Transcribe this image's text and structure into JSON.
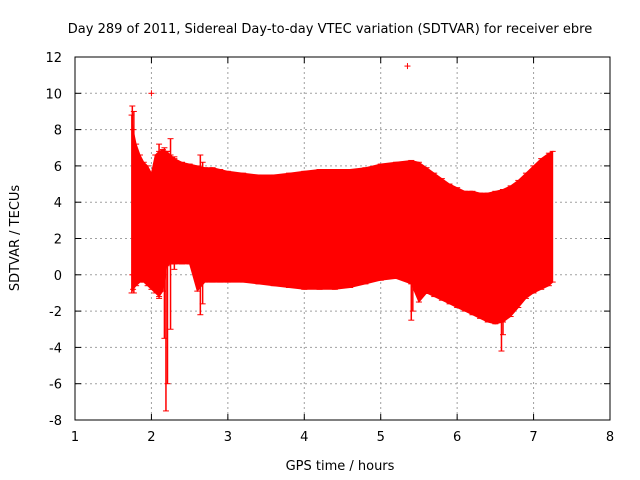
{
  "chart_data": {
    "type": "errorbar",
    "title": "Day 289 of 2011, Sidereal Day-to-day VTEC variation (SDTVAR) for receiver ebre",
    "xlabel": "GPS time / hours",
    "ylabel": "SDTVAR / TECUs",
    "xlim": [
      1,
      8
    ],
    "ylim": [
      -8,
      12
    ],
    "x_ticks": [
      1,
      2,
      3,
      4,
      5,
      6,
      7,
      8
    ],
    "y_ticks": [
      -8,
      -6,
      -4,
      -2,
      0,
      2,
      4,
      6,
      8,
      10,
      12
    ],
    "grid": true,
    "series_color": "#ff0000",
    "band": {
      "name": "SDTVAR error range",
      "x": [
        1.74,
        1.76,
        1.8,
        1.85,
        1.9,
        1.95,
        2.0,
        2.05,
        2.1,
        2.15,
        2.2,
        2.25,
        2.3,
        2.4,
        2.5,
        2.6,
        2.7,
        2.8,
        2.9,
        3.0,
        3.2,
        3.4,
        3.6,
        3.8,
        4.0,
        4.2,
        4.4,
        4.6,
        4.8,
        5.0,
        5.2,
        5.4,
        5.5,
        5.6,
        5.7,
        5.8,
        5.9,
        6.0,
        6.1,
        6.2,
        6.3,
        6.4,
        6.5,
        6.6,
        6.7,
        6.8,
        6.9,
        7.0,
        7.1,
        7.2,
        7.25
      ],
      "upper": [
        8.8,
        8.0,
        7.2,
        6.6,
        6.2,
        6.0,
        5.6,
        6.6,
        6.8,
        6.9,
        6.8,
        6.6,
        6.4,
        6.2,
        6.1,
        6.0,
        5.9,
        5.9,
        5.8,
        5.7,
        5.6,
        5.5,
        5.5,
        5.6,
        5.7,
        5.8,
        5.8,
        5.8,
        5.9,
        6.1,
        6.2,
        6.3,
        6.2,
        5.9,
        5.6,
        5.3,
        5.0,
        4.8,
        4.6,
        4.6,
        4.5,
        4.5,
        4.6,
        4.7,
        4.9,
        5.2,
        5.6,
        6.0,
        6.4,
        6.7,
        6.8
      ],
      "lower": [
        -1.0,
        -0.8,
        -0.6,
        -0.4,
        -0.4,
        -0.6,
        -0.8,
        -1.0,
        -1.2,
        -0.9,
        0.5,
        0.6,
        0.6,
        0.6,
        0.6,
        -0.9,
        -0.4,
        -0.4,
        -0.4,
        -0.4,
        -0.4,
        -0.5,
        -0.6,
        -0.7,
        -0.8,
        -0.8,
        -0.8,
        -0.7,
        -0.5,
        -0.3,
        -0.2,
        -0.5,
        -1.5,
        -1.0,
        -1.2,
        -1.4,
        -1.6,
        -1.8,
        -2.0,
        -2.2,
        -2.4,
        -2.6,
        -2.7,
        -2.6,
        -2.3,
        -1.8,
        -1.3,
        -1.0,
        -0.8,
        -0.6,
        -0.4
      ]
    },
    "spikes": [
      {
        "x": 1.75,
        "low": 0.0,
        "high": 9.3
      },
      {
        "x": 1.77,
        "low": -1.0,
        "high": 9.0
      },
      {
        "x": 2.1,
        "low": -1.3,
        "high": 7.2
      },
      {
        "x": 2.17,
        "low": -3.5,
        "high": 7.0
      },
      {
        "x": 2.19,
        "low": -7.5,
        "high": 6.3
      },
      {
        "x": 2.21,
        "low": -6.0,
        "high": 6.8
      },
      {
        "x": 2.25,
        "low": -3.0,
        "high": 7.5
      },
      {
        "x": 2.3,
        "low": 0.3,
        "high": 6.5
      },
      {
        "x": 2.64,
        "low": -2.2,
        "high": 6.6
      },
      {
        "x": 2.67,
        "low": -1.6,
        "high": 6.2
      },
      {
        "x": 5.4,
        "low": -2.5,
        "high": 6.0
      },
      {
        "x": 5.42,
        "low": -2.0,
        "high": 6.1
      },
      {
        "x": 6.58,
        "low": -4.2,
        "high": 4.4
      },
      {
        "x": 6.6,
        "low": -3.3,
        "high": 4.5
      }
    ],
    "outliers": [
      {
        "x": 2.0,
        "y": 10.0
      },
      {
        "x": 5.35,
        "y": 11.5
      }
    ]
  }
}
